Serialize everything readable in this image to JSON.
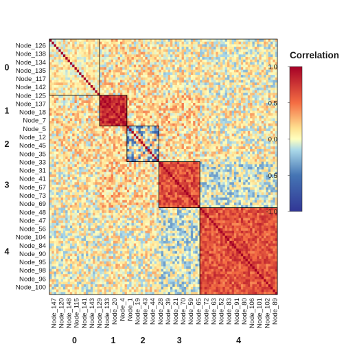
{
  "chart_data": {
    "type": "heatmap",
    "title": "",
    "xlabel": "",
    "ylabel": "",
    "matrix_size": 100,
    "diagonal_value": 1.0,
    "row_labels": [
      "Node_126",
      "Node_138",
      "Node_134",
      "Node_135",
      "Node_117",
      "Node_142",
      "Node_125",
      "Node_137",
      "Node_18",
      "Node_7",
      "Node_5",
      "Node_12",
      "Node_45",
      "Node_35",
      "Node_33",
      "Node_31",
      "Node_41",
      "Node_67",
      "Node_73",
      "Node_69",
      "Node_48",
      "Node_47",
      "Node_56",
      "Node_104",
      "Node_84",
      "Node_90",
      "Node_95",
      "Node_98",
      "Node_96",
      "Node_100"
    ],
    "column_labels": [
      "Node_147",
      "Node_120",
      "Node_148",
      "Node_115",
      "Node_141",
      "Node_143",
      "Node_129",
      "Node_133",
      "Node_20",
      "Node_4",
      "Node_1",
      "Node_19",
      "Node_43",
      "Node_44",
      "Node_28",
      "Node_39",
      "Node_21",
      "Node_70",
      "Node_59",
      "Node_65",
      "Node_72",
      "Node_63",
      "Node_52",
      "Node_83",
      "Node_91",
      "Node_80",
      "Node_106",
      "Node_101",
      "Node_102",
      "Node_89"
    ],
    "clusters": [
      {
        "label": "0",
        "start": 0,
        "end": 22,
        "mean_within": 0.08
      },
      {
        "label": "1",
        "start": 22,
        "end": 34,
        "mean_within": 0.78
      },
      {
        "label": "2",
        "start": 34,
        "end": 48,
        "mean_within": -0.1
      },
      {
        "label": "3",
        "start": 48,
        "end": 66,
        "mean_within": 0.64
      },
      {
        "label": "4",
        "start": 66,
        "end": 100,
        "mean_within": 0.62
      }
    ],
    "between_cluster_means": [
      [
        0.08,
        0.12,
        0.1,
        0.06,
        0.02
      ],
      [
        0.12,
        0.78,
        0.16,
        0.18,
        0.06
      ],
      [
        0.1,
        0.16,
        -0.1,
        0.14,
        0.04
      ],
      [
        0.06,
        0.18,
        0.14,
        0.64,
        -0.08
      ],
      [
        0.02,
        0.06,
        0.04,
        -0.08,
        0.62
      ]
    ],
    "legend": {
      "title": "Correlation",
      "position": "right",
      "ticks": [
        "1.0",
        "0.5",
        "0.0",
        "-0.5",
        "-1.0"
      ],
      "tick_values": [
        1.0,
        0.5,
        0.0,
        -0.5,
        -1.0
      ],
      "range": [
        -1.0,
        1.0
      ]
    },
    "colorscale": {
      "stops": [
        -1.0,
        -0.5,
        -0.15,
        0.0,
        0.15,
        0.5,
        1.0
      ],
      "colors": [
        "#313695",
        "#4575b4",
        "#abd9e9",
        "#ffffbf",
        "#fee090",
        "#f46d43",
        "#a50026"
      ]
    }
  }
}
